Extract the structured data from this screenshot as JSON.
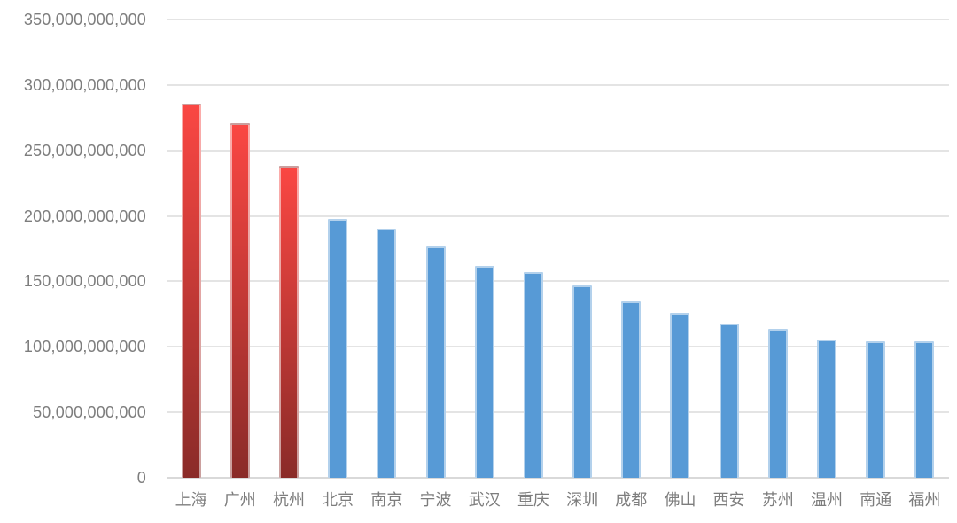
{
  "chart_data": {
    "type": "bar",
    "title": "",
    "xlabel": "",
    "ylabel": "",
    "categories": [
      "上海",
      "广州",
      "杭州",
      "北京",
      "南京",
      "宁波",
      "武汉",
      "重庆",
      "深圳",
      "成都",
      "佛山",
      "西安",
      "苏州",
      "温州",
      "南通",
      "福州"
    ],
    "values": [
      286000000000,
      270500000000,
      238000000000,
      198000000000,
      190500000000,
      176500000000,
      162000000000,
      157000000000,
      147000000000,
      134500000000,
      126000000000,
      117500000000,
      114000000000,
      105500000000,
      104000000000,
      104500000000
    ],
    "bar_styles": [
      "red",
      "red",
      "red",
      "blue",
      "blue",
      "blue",
      "blue",
      "blue",
      "blue",
      "blue",
      "blue",
      "blue",
      "blue",
      "blue",
      "blue",
      "blue"
    ],
    "y_ticks": [
      0,
      50000000000,
      100000000000,
      150000000000,
      200000000000,
      250000000000,
      300000000000,
      350000000000
    ],
    "y_tick_labels": [
      "0",
      "50,000,000,000",
      "100,000,000,000",
      "150,000,000,000",
      "200,000,000,000",
      "250,000,000,000",
      "300,000,000,000",
      "350,000,000,000"
    ],
    "ylim": [
      0,
      350000000000
    ],
    "grid": true,
    "legend_position": "none",
    "colors": {
      "red_bar_top": "#fa4743",
      "red_bar_bottom": "#8a2b28",
      "blue_bar": "#579ad6",
      "bar_border": "rgba(255,255,255,0.55)",
      "gridline": "#e4e4e4",
      "axis_line": "#d9d9d9",
      "axis_text": "#7d7d7d",
      "background": "#ffffff"
    }
  }
}
